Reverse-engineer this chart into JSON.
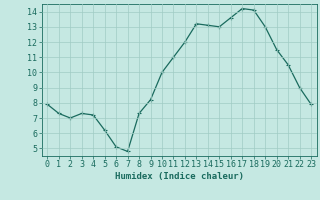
{
  "x": [
    0,
    1,
    2,
    3,
    4,
    5,
    6,
    7,
    8,
    9,
    10,
    11,
    12,
    13,
    14,
    15,
    16,
    17,
    18,
    19,
    20,
    21,
    22,
    23
  ],
  "y": [
    7.9,
    7.3,
    7.0,
    7.3,
    7.2,
    6.2,
    5.1,
    4.8,
    7.3,
    8.2,
    10.0,
    11.0,
    12.0,
    13.2,
    13.1,
    13.0,
    13.6,
    14.2,
    14.1,
    13.0,
    11.5,
    10.5,
    9.0,
    7.9
  ],
  "line_color": "#1a6b5e",
  "marker": "+",
  "marker_size": 3,
  "bg_color": "#c5e8e2",
  "grid_color": "#a0ccc4",
  "xlabel": "Humidex (Indice chaleur)",
  "ylim": [
    4.5,
    14.5
  ],
  "xlim": [
    -0.5,
    23.5
  ],
  "yticks": [
    5,
    6,
    7,
    8,
    9,
    10,
    11,
    12,
    13,
    14
  ],
  "xticks": [
    0,
    1,
    2,
    3,
    4,
    5,
    6,
    7,
    8,
    9,
    10,
    11,
    12,
    13,
    14,
    15,
    16,
    17,
    18,
    19,
    20,
    21,
    22,
    23
  ],
  "tick_color": "#1a6b5e",
  "label_fontsize": 6.5,
  "tick_fontsize": 6,
  "spine_color": "#1a6b5e",
  "linewidth": 0.9
}
